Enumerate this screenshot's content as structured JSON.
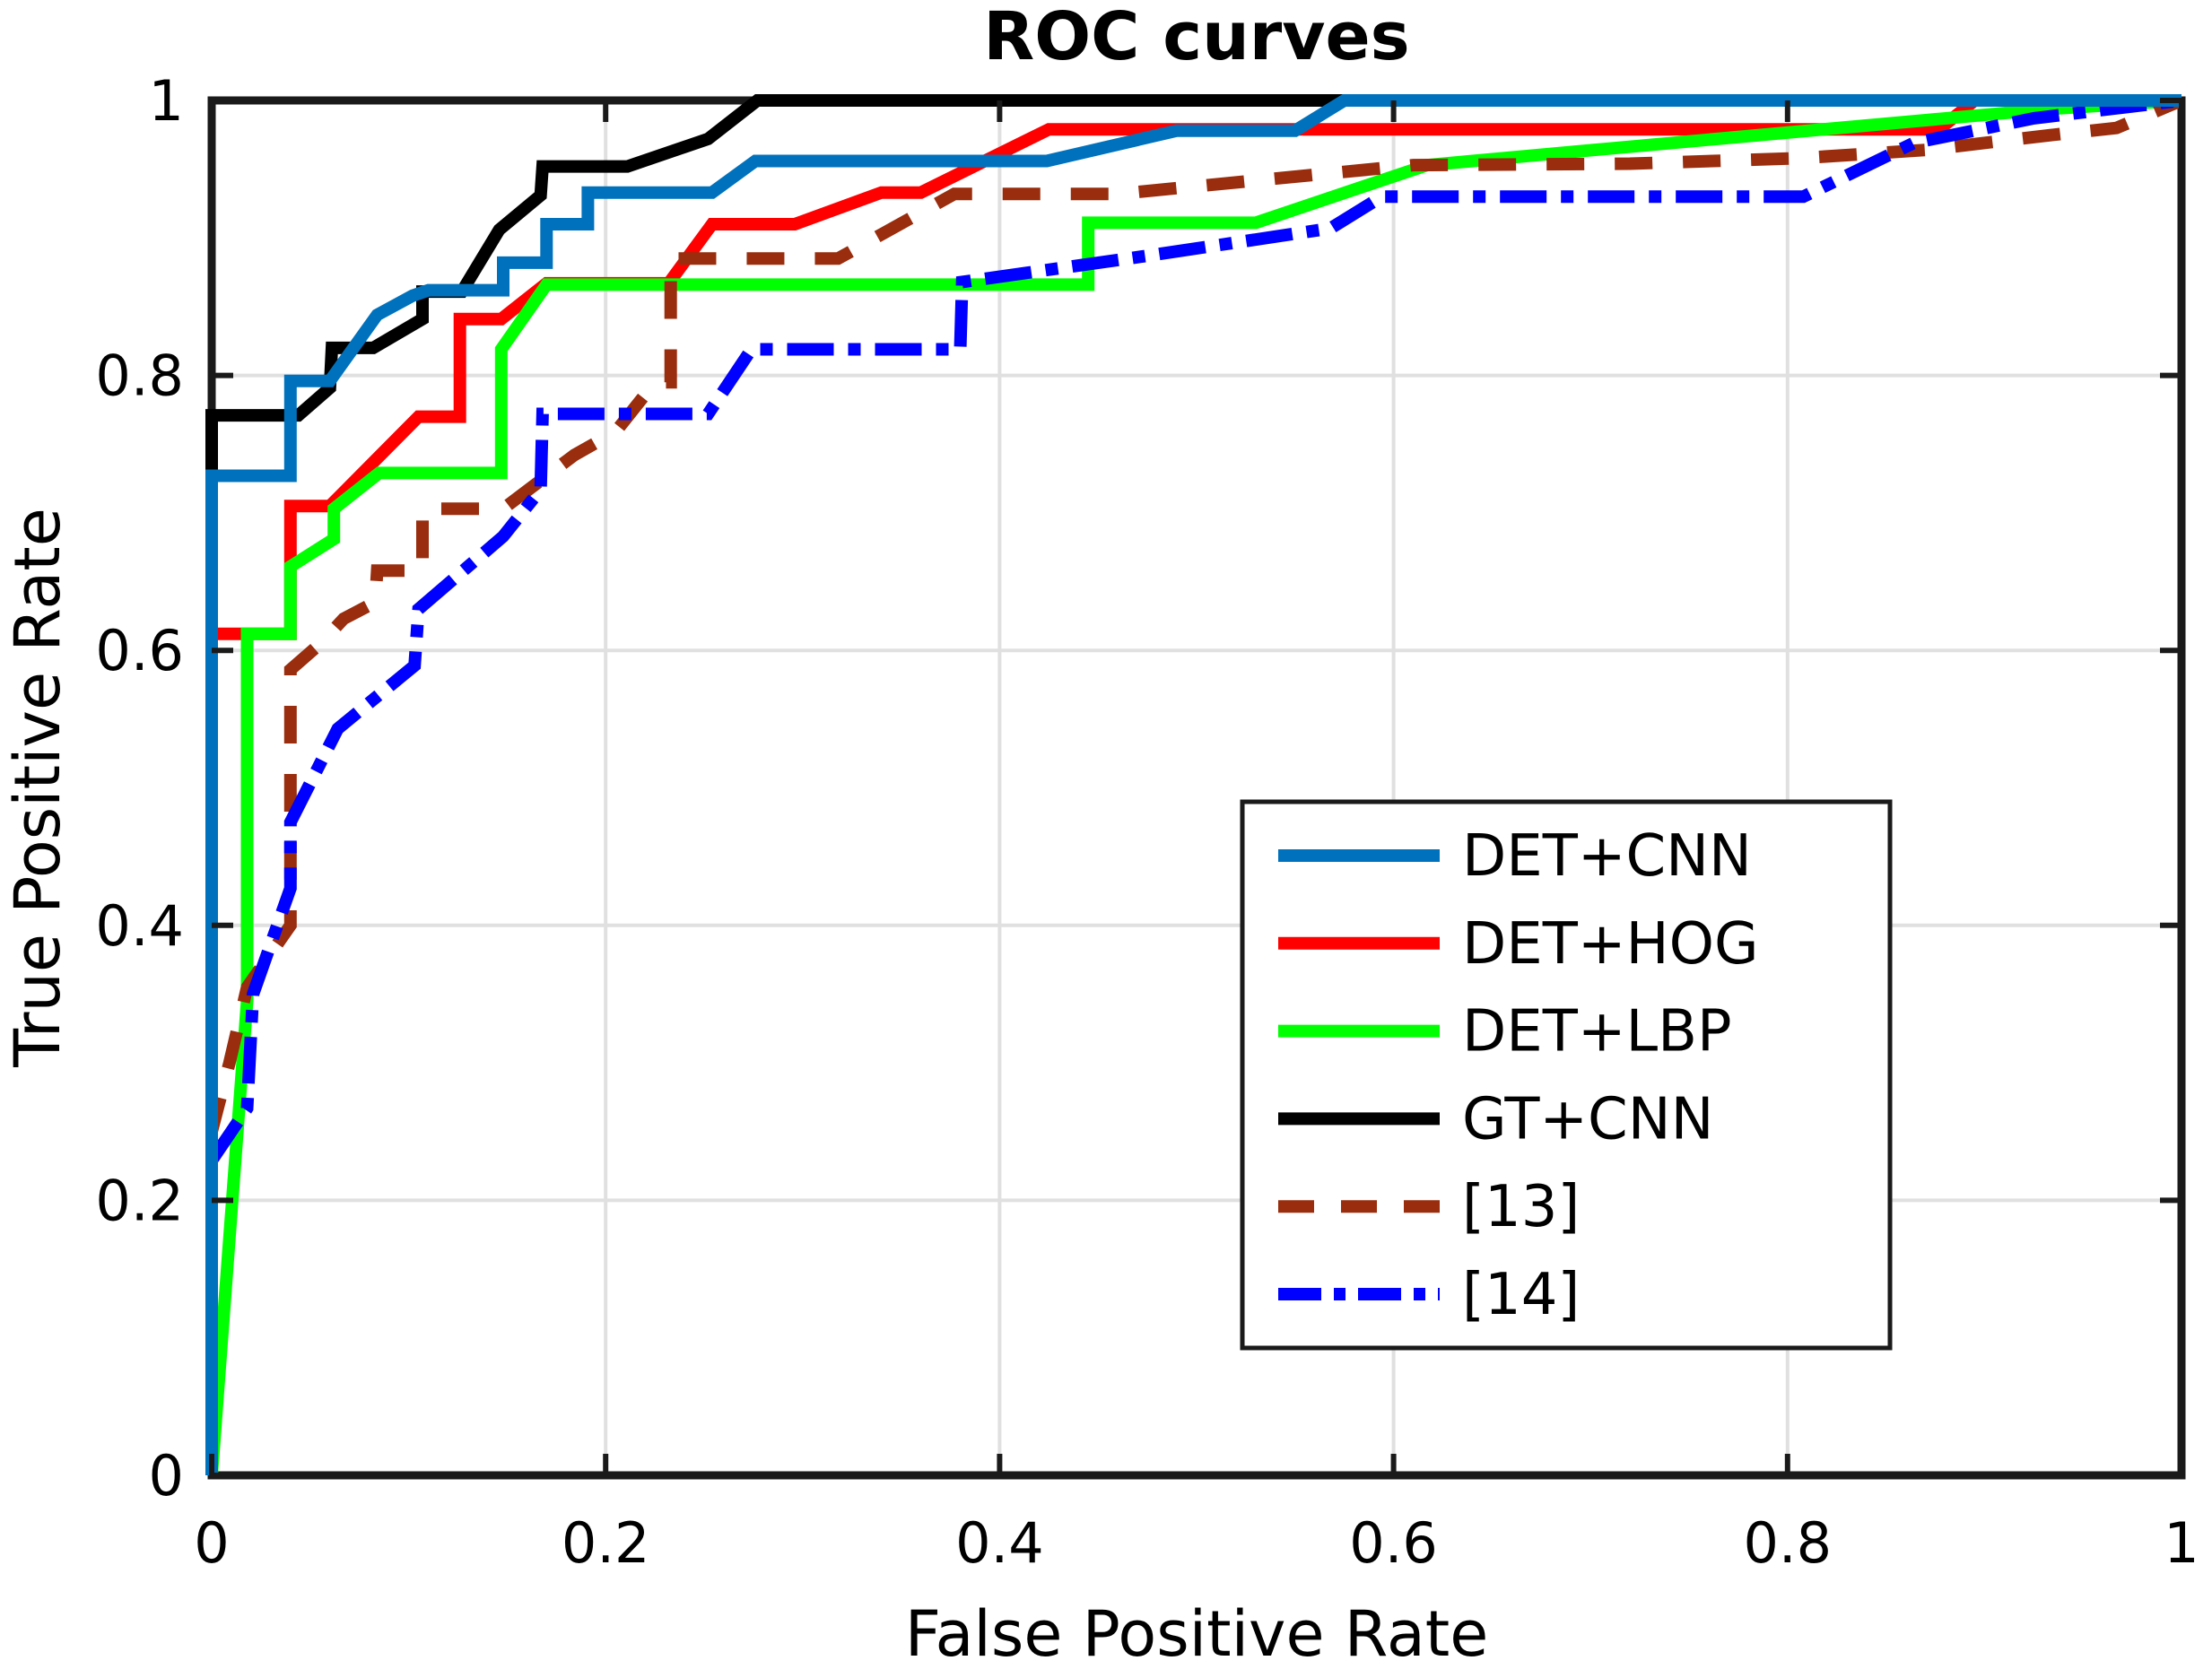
{
  "title": "ROC curves",
  "x_axis": {
    "label": "False Positive Rate",
    "ticks": [
      "0",
      "0.2",
      "0.4",
      "0.6",
      "0.8",
      "1"
    ],
    "tick_values": [
      0,
      0.2,
      0.4,
      0.6,
      0.8,
      1
    ]
  },
  "y_axis": {
    "label": "True Positive Rate",
    "ticks": [
      "0",
      "0.2",
      "0.4",
      "0.6",
      "0.8",
      "1"
    ],
    "tick_values": [
      0,
      0.2,
      0.4,
      0.6,
      0.8,
      1
    ]
  },
  "colors": {
    "axis": "#1a1a1a",
    "grid": "#e0e0e0",
    "background": "#ffffff",
    "det_cnn": "#0072BD",
    "det_hog": "#FF0000",
    "det_lbp": "#00FF00",
    "gt_cnn": "#000000",
    "ref13": "#992D0D",
    "ref14": "#0000FF"
  },
  "legend": {
    "position": "inset-lower-right"
  },
  "chart_data": {
    "type": "line",
    "title": "ROC curves",
    "xlabel": "False Positive Rate",
    "ylabel": "True Positive Rate",
    "xlim": [
      0,
      1
    ],
    "ylim": [
      0,
      1
    ],
    "grid": true,
    "legend_position": "inset lower right",
    "series": [
      {
        "name": "DET+CNN",
        "color": "#0072BD",
        "style": "solid",
        "points": [
          [
            0,
            0
          ],
          [
            0,
            0.727
          ],
          [
            0.04,
            0.727
          ],
          [
            0.04,
            0.796
          ],
          [
            0.06,
            0.796
          ],
          [
            0.084,
            0.844
          ],
          [
            0.102,
            0.858
          ],
          [
            0.11,
            0.862
          ],
          [
            0.148,
            0.862
          ],
          [
            0.148,
            0.882
          ],
          [
            0.17,
            0.882
          ],
          [
            0.17,
            0.91
          ],
          [
            0.191,
            0.91
          ],
          [
            0.191,
            0.933
          ],
          [
            0.254,
            0.933
          ],
          [
            0.276,
            0.956
          ],
          [
            0.424,
            0.956
          ],
          [
            0.49,
            0.978
          ],
          [
            0.55,
            0.978
          ],
          [
            0.575,
            1
          ],
          [
            1,
            1
          ]
        ]
      },
      {
        "name": "DET+HOG",
        "color": "#FF0000",
        "style": "solid",
        "points": [
          [
            0,
            0
          ],
          [
            0,
            0.612
          ],
          [
            0.04,
            0.612
          ],
          [
            0.04,
            0.705
          ],
          [
            0.06,
            0.705
          ],
          [
            0.105,
            0.77
          ],
          [
            0.126,
            0.77
          ],
          [
            0.126,
            0.841
          ],
          [
            0.147,
            0.841
          ],
          [
            0.17,
            0.867
          ],
          [
            0.232,
            0.867
          ],
          [
            0.254,
            0.91
          ],
          [
            0.296,
            0.91
          ],
          [
            0.34,
            0.933
          ],
          [
            0.36,
            0.933
          ],
          [
            0.425,
            0.979
          ],
          [
            0.877,
            0.979
          ],
          [
            0.895,
            1
          ],
          [
            1,
            1
          ]
        ]
      },
      {
        "name": "DET+LBP",
        "color": "#00FF00",
        "style": "solid",
        "points": [
          [
            0,
            0
          ],
          [
            0.018,
            0.345
          ],
          [
            0.018,
            0.612
          ],
          [
            0.04,
            0.612
          ],
          [
            0.04,
            0.661
          ],
          [
            0.062,
            0.681
          ],
          [
            0.062,
            0.703
          ],
          [
            0.085,
            0.729
          ],
          [
            0.147,
            0.729
          ],
          [
            0.147,
            0.819
          ],
          [
            0.17,
            0.866
          ],
          [
            0.445,
            0.866
          ],
          [
            0.445,
            0.911
          ],
          [
            0.53,
            0.911
          ],
          [
            0.617,
            0.953
          ],
          [
            0.686,
            0.962
          ],
          [
            0.935,
            0.994
          ],
          [
            1,
            1
          ]
        ]
      },
      {
        "name": "GT+CNN",
        "color": "#000000",
        "style": "solid",
        "points": [
          [
            0,
            0
          ],
          [
            0,
            0.771
          ],
          [
            0.044,
            0.771
          ],
          [
            0.06,
            0.791
          ],
          [
            0.061,
            0.82
          ],
          [
            0.082,
            0.82
          ],
          [
            0.107,
            0.841
          ],
          [
            0.107,
            0.861
          ],
          [
            0.127,
            0.861
          ],
          [
            0.146,
            0.906
          ],
          [
            0.167,
            0.931
          ],
          [
            0.168,
            0.952
          ],
          [
            0.211,
            0.952
          ],
          [
            0.252,
            0.972
          ],
          [
            0.277,
            1
          ],
          [
            1,
            1
          ]
        ]
      },
      {
        "name": "[13]",
        "color": "#992D0D",
        "style": "dashed",
        "points": [
          [
            0,
            0
          ],
          [
            0,
            0.25
          ],
          [
            0.009,
            0.3
          ],
          [
            0.018,
            0.355
          ],
          [
            0.04,
            0.4
          ],
          [
            0.04,
            0.586
          ],
          [
            0.056,
            0.606
          ],
          [
            0.067,
            0.623
          ],
          [
            0.083,
            0.635
          ],
          [
            0.084,
            0.658
          ],
          [
            0.107,
            0.658
          ],
          [
            0.107,
            0.703
          ],
          [
            0.148,
            0.703
          ],
          [
            0.184,
            0.742
          ],
          [
            0.205,
            0.759
          ],
          [
            0.225,
            0.795
          ],
          [
            0.233,
            0.795
          ],
          [
            0.233,
            0.885
          ],
          [
            0.318,
            0.885
          ],
          [
            0.377,
            0.932
          ],
          [
            0.46,
            0.932
          ],
          [
            0.61,
            0.953
          ],
          [
            0.72,
            0.954
          ],
          [
            0.806,
            0.958
          ],
          [
            0.87,
            0.964
          ],
          [
            0.935,
            0.975
          ],
          [
            0.967,
            0.98
          ],
          [
            1,
            1
          ]
        ]
      },
      {
        "name": "[14]",
        "color": "#0000FF",
        "style": "dashdot",
        "points": [
          [
            0,
            0.229
          ],
          [
            0.018,
            0.267
          ],
          [
            0.021,
            0.35
          ],
          [
            0.04,
            0.427
          ],
          [
            0.04,
            0.475
          ],
          [
            0.064,
            0.543
          ],
          [
            0.103,
            0.589
          ],
          [
            0.105,
            0.63
          ],
          [
            0.148,
            0.683
          ],
          [
            0.167,
            0.717
          ],
          [
            0.168,
            0.772
          ],
          [
            0.252,
            0.772
          ],
          [
            0.274,
            0.819
          ],
          [
            0.38,
            0.819
          ],
          [
            0.381,
            0.868
          ],
          [
            0.475,
            0.887
          ],
          [
            0.568,
            0.907
          ],
          [
            0.594,
            0.93
          ],
          [
            0.808,
            0.93
          ],
          [
            0.864,
            0.969
          ],
          [
            0.925,
            0.987
          ],
          [
            1,
            1
          ]
        ]
      }
    ]
  }
}
